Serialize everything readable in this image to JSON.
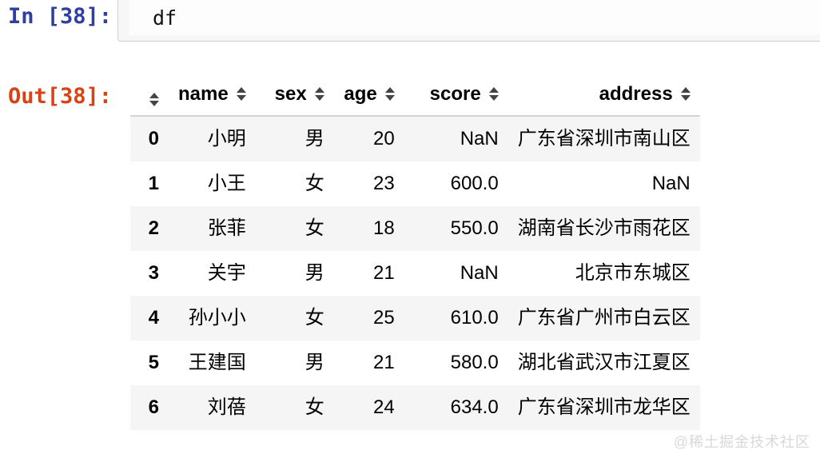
{
  "notebook": {
    "input_prompt": "In [38]:",
    "input_code": "df",
    "output_prompt": "Out[38]:"
  },
  "table": {
    "index_header": "",
    "columns": [
      {
        "key": "name",
        "label": "name"
      },
      {
        "key": "sex",
        "label": "sex"
      },
      {
        "key": "age",
        "label": "age"
      },
      {
        "key": "score",
        "label": "score"
      },
      {
        "key": "address",
        "label": "address"
      }
    ],
    "rows": [
      {
        "index": "0",
        "name": "小明",
        "sex": "男",
        "age": "20",
        "score": "NaN",
        "address": "广东省深圳市南山区"
      },
      {
        "index": "1",
        "name": "小王",
        "sex": "女",
        "age": "23",
        "score": "600.0",
        "address": "NaN"
      },
      {
        "index": "2",
        "name": "张菲",
        "sex": "女",
        "age": "18",
        "score": "550.0",
        "address": "湖南省长沙市雨花区"
      },
      {
        "index": "3",
        "name": "关宇",
        "sex": "男",
        "age": "21",
        "score": "NaN",
        "address": "北京市东城区"
      },
      {
        "index": "4",
        "name": "孙小小",
        "sex": "女",
        "age": "25",
        "score": "610.0",
        "address": "广东省广州市白云区"
      },
      {
        "index": "5",
        "name": "王建国",
        "sex": "男",
        "age": "21",
        "score": "580.0",
        "address": "湖北省武汉市江夏区"
      },
      {
        "index": "6",
        "name": "刘蓓",
        "sex": "女",
        "age": "24",
        "score": "634.0",
        "address": "广东省深圳市龙华区"
      }
    ]
  },
  "watermark": "@稀土掘金技术社区",
  "colors": {
    "in_prompt": "#303F9F",
    "out_prompt": "#D84315",
    "row_stripe": "#f5f5f5",
    "header_border": "#d3d3d3",
    "input_border": "#cfcfcf",
    "input_bg": "#f7f7f7",
    "sort_icon": "#444444",
    "watermark": "#d8d8d8"
  }
}
